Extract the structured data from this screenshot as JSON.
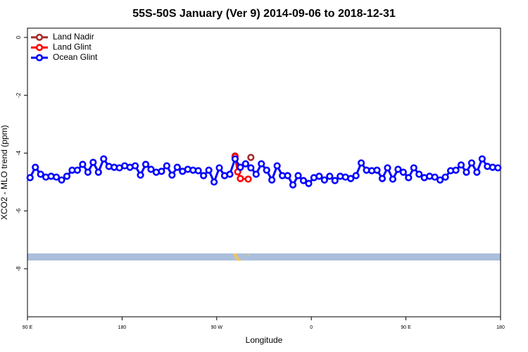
{
  "chart_data": {
    "type": "line",
    "title": "55S-50S January (Ver 9)   2014-09-06 to 2018-12-31",
    "x_label": "Longitude",
    "y_label": "XCO2 - MLO trend (ppm)",
    "xlim": [
      90,
      540
    ],
    "ylim": [
      -9.66,
      0.32
    ],
    "xticks": [
      {
        "value": 90,
        "label": "90 E"
      },
      {
        "value": 180,
        "label": "180"
      },
      {
        "value": 270,
        "label": "90 W"
      },
      {
        "value": 360,
        "label": "0"
      },
      {
        "value": 450,
        "label": "90 E"
      },
      {
        "value": 540,
        "label": "180"
      }
    ],
    "yticks": [
      0,
      -2,
      -4,
      -6,
      -8
    ],
    "legend": "top-left",
    "series": [
      {
        "name": "Land Nadir",
        "color": "#a52a2a",
        "x": [
          287.5,
          295,
          302.5
        ],
        "values": [
          -4.1,
          null,
          -4.15
        ]
      },
      {
        "name": "Land Glint",
        "color": "#ff0000",
        "x": [
          287.5,
          290,
          292.5,
          300
        ],
        "values": [
          -4.12,
          -4.65,
          -4.88,
          -4.9
        ]
      },
      {
        "name": "Ocean Glint",
        "color": "#0000ff",
        "x": [
          92.5,
          97.5,
          102.5,
          107.5,
          112.5,
          117.5,
          122.5,
          127.5,
          132.5,
          137.5,
          142.5,
          147.5,
          152.5,
          157.5,
          162.5,
          167.5,
          172.5,
          177.5,
          182.5,
          187.5,
          192.5,
          197.5,
          202.5,
          207.5,
          212.5,
          217.5,
          222.5,
          227.5,
          232.5,
          237.5,
          242.5,
          247.5,
          252.5,
          257.5,
          262.5,
          267.5,
          272.5,
          277.5,
          282.5,
          287.5,
          292.5,
          297.5,
          302.5,
          307.5,
          312.5,
          317.5,
          322.5,
          327.5,
          332.5,
          337.5,
          342.5,
          347.5,
          352.5,
          357.5,
          362.5,
          367.5,
          372.5,
          377.5,
          382.5,
          387.5,
          392.5,
          397.5,
          402.5,
          407.5,
          412.5,
          417.5,
          422.5,
          427.5,
          432.5,
          437.5,
          442.5,
          447.5,
          452.5,
          457.5,
          462.5,
          467.5,
          472.5,
          477.5,
          482.5,
          487.5,
          492.5,
          497.5,
          502.5,
          507.5,
          512.5,
          517.5,
          522.5,
          527.5,
          532.5,
          537.5
        ],
        "values": [
          -4.85,
          -4.49,
          -4.73,
          -4.83,
          -4.8,
          -4.83,
          -4.93,
          -4.8,
          -4.59,
          -4.59,
          -4.39,
          -4.66,
          -4.32,
          -4.66,
          -4.2,
          -4.46,
          -4.49,
          -4.51,
          -4.44,
          -4.49,
          -4.44,
          -4.76,
          -4.39,
          -4.56,
          -4.66,
          -4.63,
          -4.44,
          -4.76,
          -4.49,
          -4.63,
          -4.56,
          -4.59,
          -4.61,
          -4.78,
          -4.59,
          -5.0,
          -4.51,
          -4.78,
          -4.73,
          -4.2,
          -4.49,
          -4.37,
          -4.51,
          -4.73,
          -4.37,
          -4.59,
          -4.93,
          -4.44,
          -4.78,
          -4.78,
          -5.1,
          -4.78,
          -4.95,
          -5.05,
          -4.85,
          -4.8,
          -4.93,
          -4.8,
          -4.95,
          -4.8,
          -4.83,
          -4.88,
          -4.78,
          -4.34,
          -4.59,
          -4.61,
          -4.59,
          -4.88,
          -4.51,
          -4.9,
          -4.56,
          -4.66,
          -4.85,
          -4.51,
          -4.73,
          -4.85,
          -4.8,
          -4.83,
          -4.93,
          -4.83,
          -4.61,
          -4.59,
          -4.41,
          -4.66,
          -4.34,
          -4.66,
          -4.2,
          -4.46,
          -4.49,
          -4.51
        ]
      }
    ]
  }
}
